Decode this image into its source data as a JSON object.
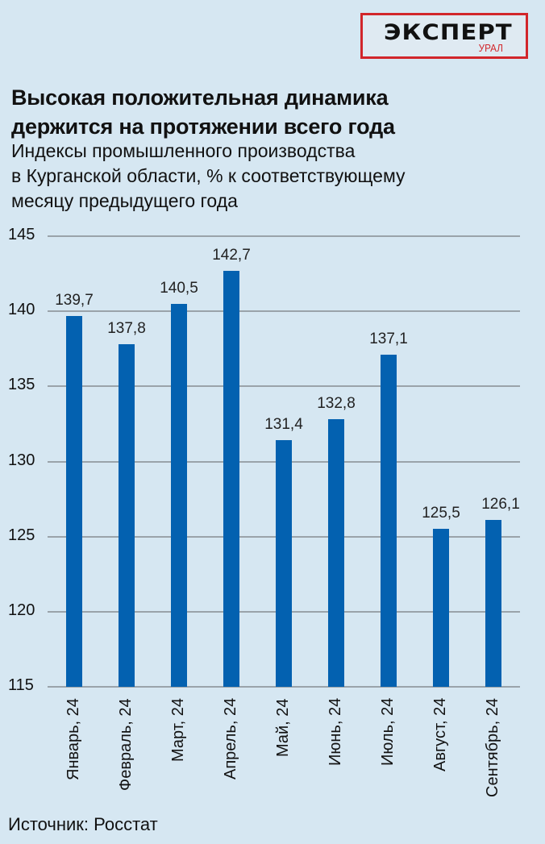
{
  "logo": {
    "main": "ЭКСПЕРТ",
    "sub": "УРАЛ",
    "border_color": "#d2262b"
  },
  "header": {
    "title_line1": "Высокая положительная динамика",
    "title_line2": "держится на протяжении всего года",
    "subtitle_line1": "Индексы промышленного производства",
    "subtitle_line2": "в Курганской области, % к соответствующему",
    "subtitle_line3": "месяцу предыдущего года"
  },
  "yticks": [
    "145",
    "140",
    "135",
    "130",
    "125",
    "120",
    "115"
  ],
  "value_labels": [
    "139,7",
    "137,8",
    "140,5",
    "142,7",
    "131,4",
    "132,8",
    "137,1",
    "125,5",
    "126,1"
  ],
  "xlabels": [
    "Январь, 24",
    "Февраль, 24",
    "Март, 24",
    "Апрель, 24",
    "Май, 24",
    "Июнь, 24",
    "Июль, 24",
    "Август, 24",
    "Сентябрь, 24"
  ],
  "source": "Источник: Росстат",
  "colors": {
    "background": "#d6e7f2",
    "bar": "#0361b0",
    "grid": "#9aa3aa"
  },
  "chart_data": {
    "type": "bar",
    "title": "Высокая положительная динамика держится на протяжении всего года",
    "subtitle": "Индексы промышленного производства в Курганской области, % к соответствующему месяцу предыдущего года",
    "categories": [
      "Январь, 24",
      "Февраль, 24",
      "Март, 24",
      "Апрель, 24",
      "Май, 24",
      "Июнь, 24",
      "Июль, 24",
      "Август, 24",
      "Сентябрь, 24"
    ],
    "values": [
      139.7,
      137.8,
      140.5,
      142.7,
      131.4,
      132.8,
      137.1,
      125.5,
      126.1
    ],
    "xlabel": "",
    "ylabel": "",
    "ylim": [
      115,
      145
    ],
    "yticks": [
      115,
      120,
      125,
      130,
      135,
      140,
      145
    ],
    "grid": true,
    "legend": null,
    "data_labels": true,
    "source": "Источник: Росстат"
  }
}
